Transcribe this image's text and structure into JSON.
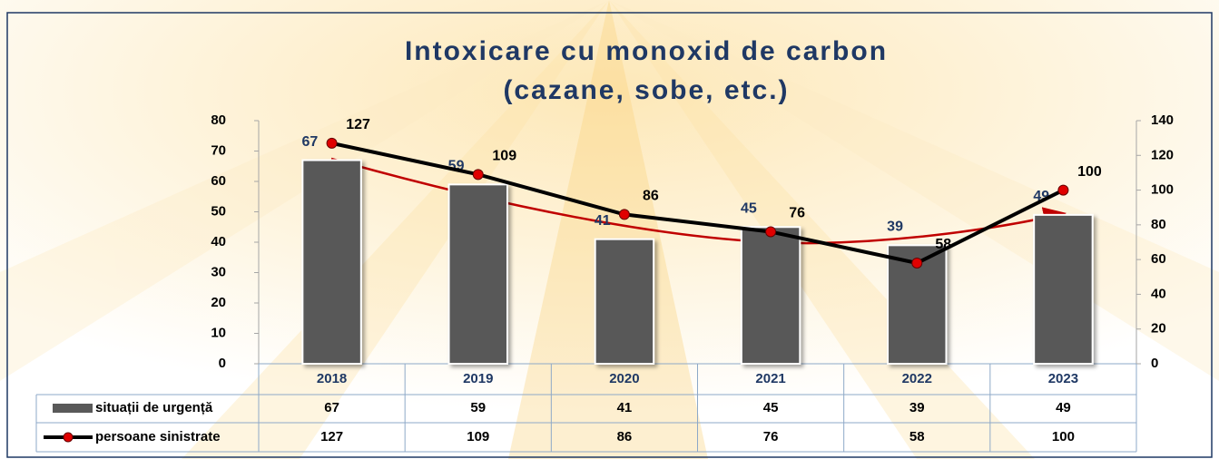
{
  "chart_data": {
    "type": "bar",
    "title": "Intoxicare cu monoxid de carbon",
    "subtitle": "(cazane, sobe, etc.)",
    "categories": [
      "2018",
      "2019",
      "2020",
      "2021",
      "2022",
      "2023"
    ],
    "series": [
      {
        "name": "situații de urgență",
        "type": "bar",
        "color": "#595959",
        "label_color": "#1f3864",
        "values": [
          67,
          59,
          41,
          45,
          39,
          49
        ]
      },
      {
        "name": "persoane sinistrate",
        "type": "line",
        "axis": "y2",
        "color": "#000000",
        "marker_color": "#e00000",
        "label_color": "#000000",
        "values": [
          127,
          109,
          86,
          76,
          58,
          100
        ]
      }
    ],
    "ylim": [
      0,
      80
    ],
    "yticks": [
      0,
      10,
      20,
      30,
      40,
      50,
      60,
      70,
      80
    ],
    "y2lim": [
      0,
      140
    ],
    "y2ticks": [
      0,
      20,
      40,
      60,
      80,
      100,
      120,
      140
    ],
    "grid": false
  }
}
